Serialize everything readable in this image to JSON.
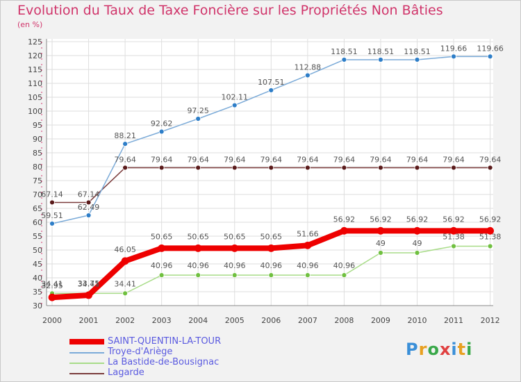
{
  "title": "Evolution du Taux de Taxe Foncière sur les Propriétés Non Bâties",
  "unit": "(en %)",
  "logo": {
    "letters": [
      "P",
      "r",
      "o",
      "x",
      "i",
      "t",
      "i"
    ],
    "colors": [
      "#3a8fd8",
      "#e8a020",
      "#3aa84a",
      "#e04040",
      "#3a8fd8",
      "#e8a020",
      "#3aa84a"
    ]
  },
  "chart_data": {
    "type": "line",
    "title": "Evolution du Taux de Taxe Foncière sur les Propriétés Non Bâties",
    "ylabel": "(en %)",
    "ylim": [
      30,
      125
    ],
    "yticks": [
      30,
      35,
      40,
      45,
      50,
      55,
      60,
      65,
      70,
      75,
      80,
      85,
      90,
      95,
      100,
      105,
      110,
      115,
      120,
      125
    ],
    "x": [
      "2000",
      "2001",
      "2002",
      "2003",
      "2004",
      "2005",
      "2006",
      "2007",
      "2008",
      "2009",
      "2010",
      "2011",
      "2012"
    ],
    "series": [
      {
        "name": "SAINT-QUENTIN-LA-TOUR",
        "color": "#ee0000",
        "marker": "#ee0000",
        "width": 8,
        "values": [
          32.95,
          33.75,
          46.05,
          50.65,
          50.65,
          50.65,
          50.65,
          51.66,
          56.92,
          56.92,
          56.92,
          56.92,
          56.92
        ],
        "labels": [
          "32.95",
          "33.75",
          "46.05",
          "50.65",
          "50.65",
          "50.65",
          "50.65",
          "51.66",
          "56.92",
          "56.92",
          "56.92",
          "56.92",
          "56.92"
        ]
      },
      {
        "name": "Troye-d'Ariège",
        "color": "#7aaad8",
        "marker": "#2e7ec8",
        "width": 1.5,
        "values": [
          59.51,
          62.49,
          88.21,
          92.62,
          97.25,
          102.11,
          107.51,
          112.88,
          118.51,
          118.51,
          118.51,
          119.66,
          119.66
        ],
        "labels": [
          "59.51",
          "62.49",
          "88.21",
          "92.62",
          "97.25",
          "102.11",
          "107.51",
          "112.88",
          "118.51",
          "118.51",
          "118.51",
          "119.66",
          "119.66"
        ]
      },
      {
        "name": "La Bastide-de-Bousignac",
        "color": "#a8dc88",
        "marker": "#70c040",
        "width": 1.5,
        "values": [
          34.41,
          34.41,
          34.41,
          40.96,
          40.96,
          40.96,
          40.96,
          40.96,
          40.96,
          49,
          49,
          51.38,
          51.38
        ],
        "labels": [
          "34.41",
          "34.41",
          "34.41",
          "40.96",
          "40.96",
          "40.96",
          "40.96",
          "40.96",
          "40.96",
          "49",
          "49",
          "51.38",
          "51.38"
        ]
      },
      {
        "name": "Lagarde",
        "color": "#7a3a3a",
        "marker": "#5a1a1a",
        "width": 1.5,
        "values": [
          67.14,
          67.14,
          79.64,
          79.64,
          79.64,
          79.64,
          79.64,
          79.64,
          79.64,
          79.64,
          79.64,
          79.64,
          79.64
        ],
        "labels": [
          "67.14",
          "67.14",
          "79.64",
          "79.64",
          "79.64",
          "79.64",
          "79.64",
          "79.64",
          "79.64",
          "79.64",
          "79.64",
          "79.64",
          "79.64"
        ]
      }
    ]
  }
}
